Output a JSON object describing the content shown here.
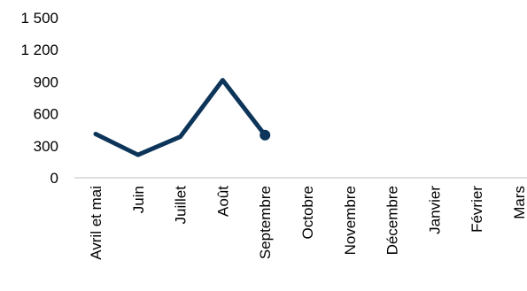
{
  "chart_data": {
    "type": "line",
    "categories": [
      "Avril et mai",
      "Juin",
      "Juillet",
      "Août",
      "Septembre",
      "Octobre",
      "Novembre",
      "Décembre",
      "Janvier",
      "Février",
      "Mars"
    ],
    "series": [
      {
        "values": [
          410,
          215,
          385,
          915,
          400,
          null,
          null,
          null,
          null,
          null,
          null
        ],
        "color": "#0d3459"
      }
    ],
    "y_ticks": [
      "0",
      "300",
      "600",
      "900",
      "1 200",
      "1 500"
    ],
    "ylim": [
      0,
      1500
    ],
    "grid": false,
    "legend": "none",
    "last_point_marker": true
  }
}
